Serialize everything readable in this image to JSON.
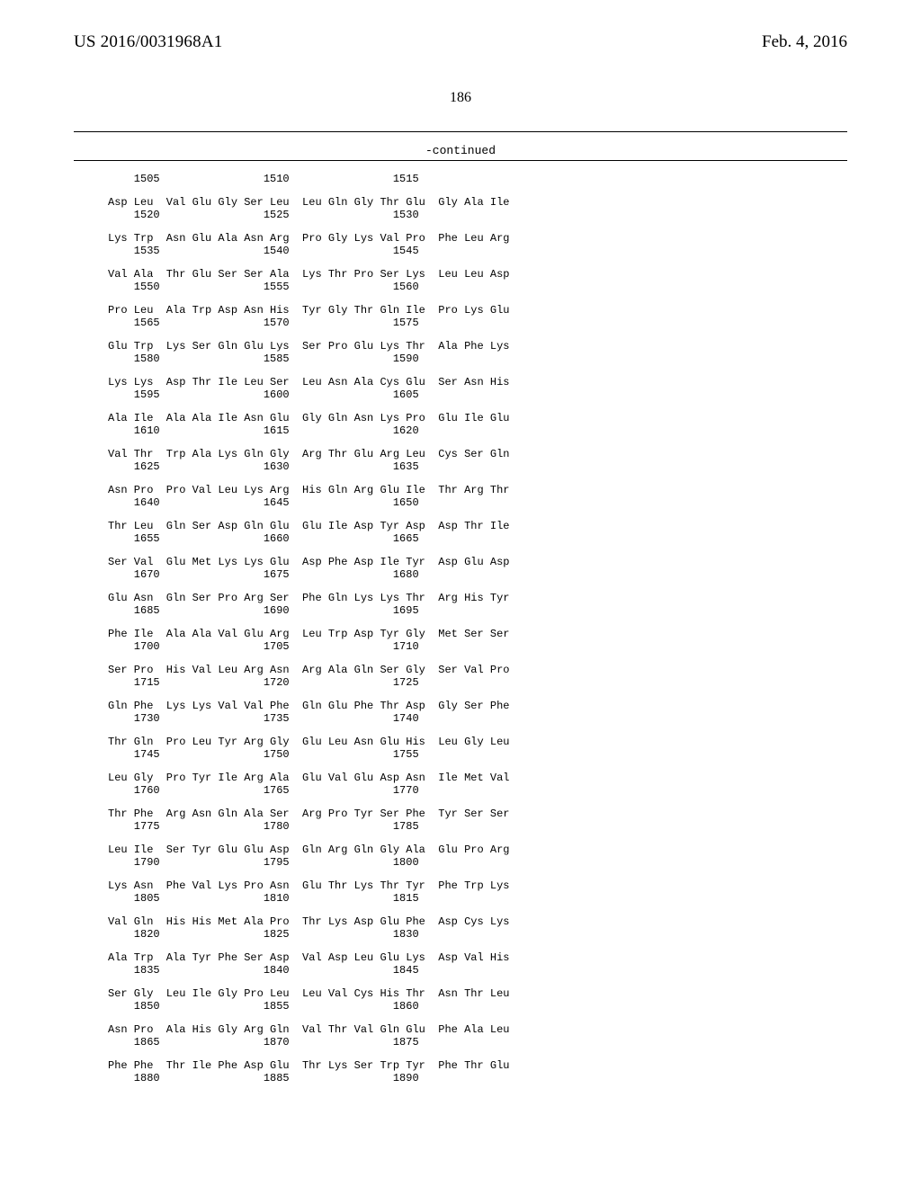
{
  "header": {
    "left": "US 2016/0031968A1",
    "right": "Feb. 4, 2016"
  },
  "pageNumber": "186",
  "continued": "-continued",
  "firstNumRow": "    1505                1510                1515",
  "entries": [
    {
      "aa": "Asp Leu  Val Glu Gly Ser Leu  Leu Gln Gly Thr Glu  Gly Ala Ile",
      "num": "    1520                1525                1530"
    },
    {
      "aa": "Lys Trp  Asn Glu Ala Asn Arg  Pro Gly Lys Val Pro  Phe Leu Arg",
      "num": "    1535                1540                1545"
    },
    {
      "aa": "Val Ala  Thr Glu Ser Ser Ala  Lys Thr Pro Ser Lys  Leu Leu Asp",
      "num": "    1550                1555                1560"
    },
    {
      "aa": "Pro Leu  Ala Trp Asp Asn His  Tyr Gly Thr Gln Ile  Pro Lys Glu",
      "num": "    1565                1570                1575"
    },
    {
      "aa": "Glu Trp  Lys Ser Gln Glu Lys  Ser Pro Glu Lys Thr  Ala Phe Lys",
      "num": "    1580                1585                1590"
    },
    {
      "aa": "Lys Lys  Asp Thr Ile Leu Ser  Leu Asn Ala Cys Glu  Ser Asn His",
      "num": "    1595                1600                1605"
    },
    {
      "aa": "Ala Ile  Ala Ala Ile Asn Glu  Gly Gln Asn Lys Pro  Glu Ile Glu",
      "num": "    1610                1615                1620"
    },
    {
      "aa": "Val Thr  Trp Ala Lys Gln Gly  Arg Thr Glu Arg Leu  Cys Ser Gln",
      "num": "    1625                1630                1635"
    },
    {
      "aa": "Asn Pro  Pro Val Leu Lys Arg  His Gln Arg Glu Ile  Thr Arg Thr",
      "num": "    1640                1645                1650"
    },
    {
      "aa": "Thr Leu  Gln Ser Asp Gln Glu  Glu Ile Asp Tyr Asp  Asp Thr Ile",
      "num": "    1655                1660                1665"
    },
    {
      "aa": "Ser Val  Glu Met Lys Lys Glu  Asp Phe Asp Ile Tyr  Asp Glu Asp",
      "num": "    1670                1675                1680"
    },
    {
      "aa": "Glu Asn  Gln Ser Pro Arg Ser  Phe Gln Lys Lys Thr  Arg His Tyr",
      "num": "    1685                1690                1695"
    },
    {
      "aa": "Phe Ile  Ala Ala Val Glu Arg  Leu Trp Asp Tyr Gly  Met Ser Ser",
      "num": "    1700                1705                1710"
    },
    {
      "aa": "Ser Pro  His Val Leu Arg Asn  Arg Ala Gln Ser Gly  Ser Val Pro",
      "num": "    1715                1720                1725"
    },
    {
      "aa": "Gln Phe  Lys Lys Val Val Phe  Gln Glu Phe Thr Asp  Gly Ser Phe",
      "num": "    1730                1735                1740"
    },
    {
      "aa": "Thr Gln  Pro Leu Tyr Arg Gly  Glu Leu Asn Glu His  Leu Gly Leu",
      "num": "    1745                1750                1755"
    },
    {
      "aa": "Leu Gly  Pro Tyr Ile Arg Ala  Glu Val Glu Asp Asn  Ile Met Val",
      "num": "    1760                1765                1770"
    },
    {
      "aa": "Thr Phe  Arg Asn Gln Ala Ser  Arg Pro Tyr Ser Phe  Tyr Ser Ser",
      "num": "    1775                1780                1785"
    },
    {
      "aa": "Leu Ile  Ser Tyr Glu Glu Asp  Gln Arg Gln Gly Ala  Glu Pro Arg",
      "num": "    1790                1795                1800"
    },
    {
      "aa": "Lys Asn  Phe Val Lys Pro Asn  Glu Thr Lys Thr Tyr  Phe Trp Lys",
      "num": "    1805                1810                1815"
    },
    {
      "aa": "Val Gln  His His Met Ala Pro  Thr Lys Asp Glu Phe  Asp Cys Lys",
      "num": "    1820                1825                1830"
    },
    {
      "aa": "Ala Trp  Ala Tyr Phe Ser Asp  Val Asp Leu Glu Lys  Asp Val His",
      "num": "    1835                1840                1845"
    },
    {
      "aa": "Ser Gly  Leu Ile Gly Pro Leu  Leu Val Cys His Thr  Asn Thr Leu",
      "num": "    1850                1855                1860"
    },
    {
      "aa": "Asn Pro  Ala His Gly Arg Gln  Val Thr Val Gln Glu  Phe Ala Leu",
      "num": "    1865                1870                1875"
    },
    {
      "aa": "Phe Phe  Thr Ile Phe Asp Glu  Thr Lys Ser Trp Tyr  Phe Thr Glu",
      "num": "    1880                1885                1890"
    }
  ]
}
